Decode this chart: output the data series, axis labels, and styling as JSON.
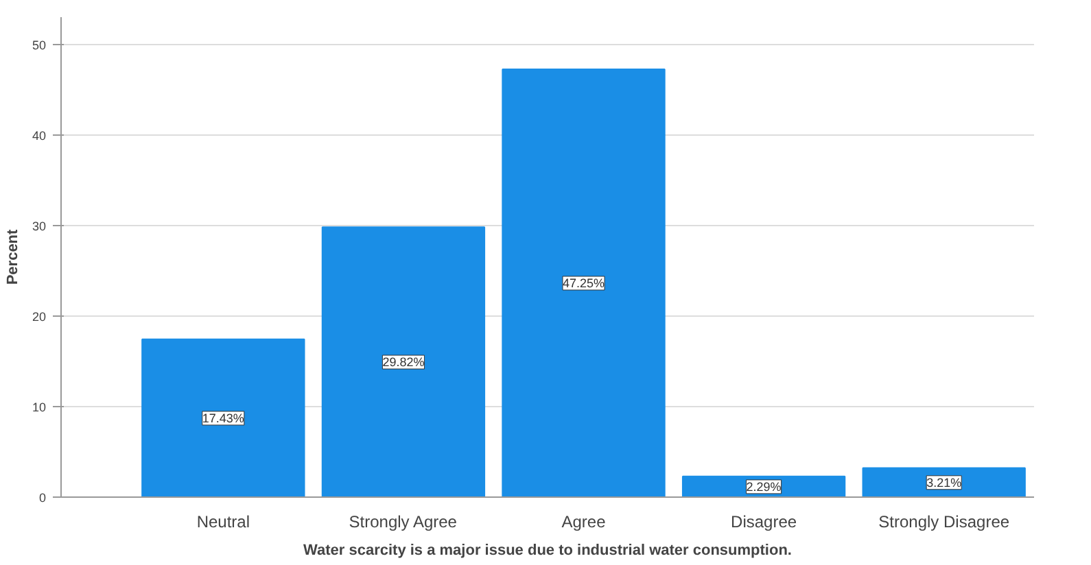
{
  "chart_data": {
    "type": "bar",
    "xlabel": "Water scarcity is a major issue due to industrial water consumption.",
    "ylabel": "Percent",
    "categories": [
      "Neutral",
      "Strongly Agree",
      "Agree",
      "Disagree",
      "Strongly Disagree"
    ],
    "values": [
      17.43,
      29.82,
      47.25,
      2.29,
      3.21
    ],
    "value_labels": [
      "17.43%",
      "29.82%",
      "47.25%",
      "2.29%",
      "3.21%"
    ],
    "color": "#1a8ee6",
    "ylim": [
      0,
      53
    ],
    "yticks": [
      0,
      10,
      20,
      30,
      40,
      50
    ],
    "grid": "y"
  }
}
